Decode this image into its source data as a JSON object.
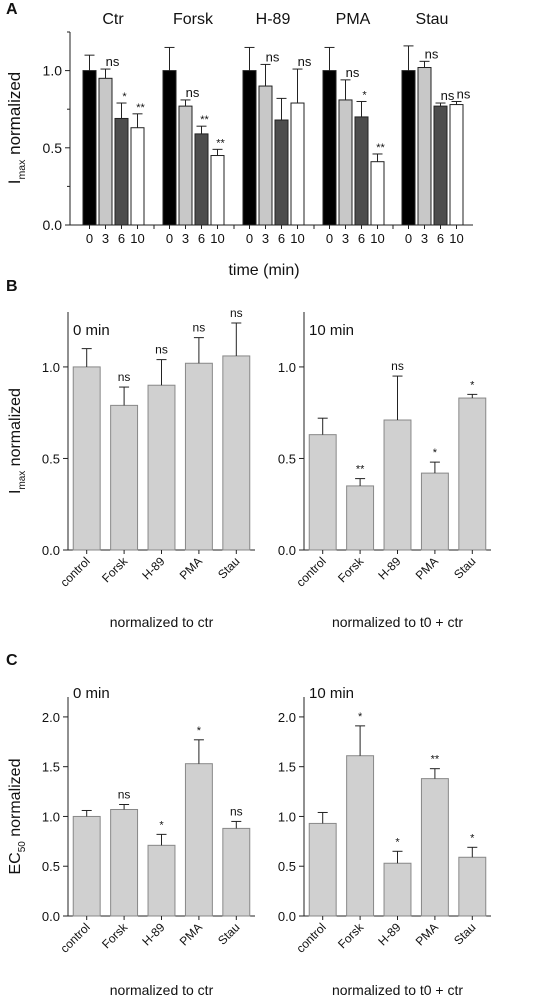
{
  "chart_data": [
    {
      "panel": "A",
      "type": "bar",
      "ylabel_main": "I",
      "ylabel_sub": "max",
      "ylabel_rest": " normalized",
      "xlabel": "time (min)",
      "ylim": [
        0,
        1.25
      ],
      "yticks": [
        "0.0",
        "0.5",
        "1.0"
      ],
      "categories": [
        "0",
        "3",
        "6",
        "10"
      ],
      "colors": [
        "#000000",
        "#c8c8c8",
        "#4d4d4d",
        "#ffffff"
      ],
      "groups": [
        {
          "name": "Ctr",
          "values": [
            1.0,
            0.95,
            0.69,
            0.63
          ],
          "errors": [
            0.1,
            0.06,
            0.1,
            0.09
          ],
          "labels": [
            "",
            "ns",
            "*",
            "**"
          ]
        },
        {
          "name": "Forsk",
          "values": [
            1.0,
            0.77,
            0.59,
            0.45
          ],
          "errors": [
            0.15,
            0.04,
            0.05,
            0.04
          ],
          "labels": [
            "",
            "ns",
            "**",
            "**"
          ]
        },
        {
          "name": "H-89",
          "values": [
            1.0,
            0.9,
            0.68,
            0.79
          ],
          "errors": [
            0.15,
            0.14,
            0.14,
            0.22
          ],
          "labels": [
            "",
            "ns",
            "",
            "ns"
          ]
        },
        {
          "name": "PMA",
          "values": [
            1.0,
            0.81,
            0.7,
            0.41
          ],
          "errors": [
            0.15,
            0.13,
            0.1,
            0.05
          ],
          "labels": [
            "",
            "ns",
            "*",
            "**"
          ]
        },
        {
          "name": "Stau",
          "values": [
            1.0,
            1.02,
            0.77,
            0.78
          ],
          "errors": [
            0.16,
            0.04,
            0.02,
            0.02
          ],
          "labels": [
            "",
            "ns",
            "ns",
            "ns"
          ]
        }
      ]
    },
    {
      "panel": "B",
      "type": "bar",
      "ylabel_main": "I",
      "ylabel_sub": "max",
      "ylabel_rest": " normalized",
      "ylim": [
        0,
        1.3
      ],
      "yticks": [
        "0.0",
        "0.5",
        "1.0"
      ],
      "bar_color": "#d0d0d0",
      "subplots": [
        {
          "title": "0 min",
          "xlabel": "normalized to ctr",
          "categories": [
            "control",
            "Forsk",
            "H-89",
            "PMA",
            "Stau"
          ],
          "values": [
            1.0,
            0.79,
            0.9,
            1.02,
            1.06
          ],
          "errors": [
            0.1,
            0.1,
            0.14,
            0.14,
            0.18
          ],
          "labels": [
            "",
            "ns",
            "ns",
            "ns",
            "ns"
          ]
        },
        {
          "title": "10 min",
          "xlabel": "normalized to t0 + ctr",
          "categories": [
            "control",
            "Forsk",
            "H-89",
            "PMA",
            "Stau"
          ],
          "values": [
            0.63,
            0.35,
            0.71,
            0.42,
            0.83
          ],
          "errors": [
            0.09,
            0.04,
            0.24,
            0.06,
            0.02
          ],
          "labels": [
            "",
            "**",
            "ns",
            "*",
            "*"
          ]
        }
      ]
    },
    {
      "panel": "C",
      "type": "bar",
      "ylabel_main": "EC",
      "ylabel_sub": "50",
      "ylabel_rest": " normalized",
      "ylim": [
        0,
        2.2
      ],
      "yticks": [
        "0.0",
        "0.5",
        "1.0",
        "1.5",
        "2.0"
      ],
      "bar_color": "#d0d0d0",
      "subplots": [
        {
          "title": "0 min",
          "xlabel": "normalized to ctr",
          "categories": [
            "control",
            "Forsk",
            "H-89",
            "PMA",
            "Stau"
          ],
          "values": [
            1.0,
            1.07,
            0.71,
            1.53,
            0.88
          ],
          "errors": [
            0.06,
            0.05,
            0.11,
            0.24,
            0.07
          ],
          "labels": [
            "",
            "ns",
            "*",
            "*",
            "ns"
          ]
        },
        {
          "title": "10 min",
          "xlabel": "normalized to t0 + ctr",
          "categories": [
            "control",
            "Forsk",
            "H-89",
            "PMA",
            "Stau"
          ],
          "values": [
            0.93,
            1.61,
            0.53,
            1.38,
            0.59
          ],
          "errors": [
            0.11,
            0.3,
            0.12,
            0.1,
            0.1
          ],
          "labels": [
            "",
            "*",
            "*",
            "**",
            "*"
          ]
        }
      ]
    }
  ]
}
